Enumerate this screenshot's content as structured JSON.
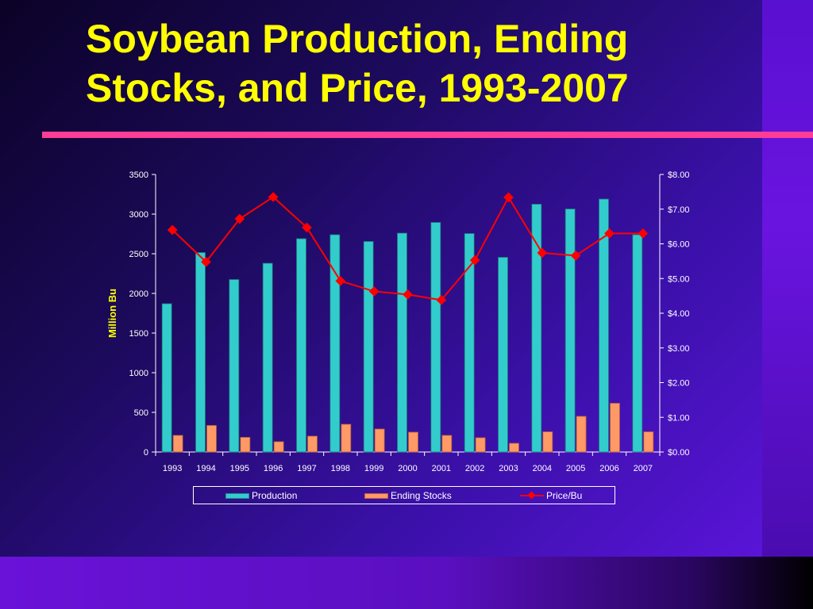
{
  "slide": {
    "title": "Soybean Production, Ending Stocks, and Price, 1993-2007"
  },
  "colors": {
    "title": "#ffff00",
    "rule": "#ff3c96",
    "production": "#33cccc",
    "ending_stocks": "#ff9966",
    "price": "#ff0000"
  },
  "chart_data": {
    "type": "bar",
    "title": "",
    "xlabel": "",
    "ylabel": "Million Bu",
    "y2label": "",
    "categories": [
      "1993",
      "1994",
      "1995",
      "1996",
      "1997",
      "1998",
      "1999",
      "2000",
      "2001",
      "2002",
      "2003",
      "2004",
      "2005",
      "2006",
      "2007"
    ],
    "ylim": [
      0,
      3500
    ],
    "y2lim": [
      0,
      8
    ],
    "yticks": [
      "0",
      "500",
      "1000",
      "1500",
      "2000",
      "2500",
      "3000",
      "3500"
    ],
    "y2ticks": [
      "$0.00",
      "$1.00",
      "$2.00",
      "$3.00",
      "$4.00",
      "$5.00",
      "$6.00",
      "$7.00",
      "$8.00"
    ],
    "grid": false,
    "legend_position": "bottom",
    "series": [
      {
        "name": "Production",
        "type": "bar",
        "axis": "left",
        "values": [
          1870,
          2515,
          2175,
          2380,
          2690,
          2740,
          2655,
          2760,
          2895,
          2755,
          2455,
          3125,
          3065,
          3190,
          2740
        ]
      },
      {
        "name": "Ending Stocks",
        "type": "bar",
        "axis": "left",
        "values": [
          210,
          335,
          185,
          130,
          200,
          350,
          290,
          250,
          210,
          180,
          110,
          255,
          450,
          615,
          255
        ]
      },
      {
        "name": "Price/Bu",
        "type": "line",
        "axis": "right",
        "marker": "diamond",
        "values": [
          6.4,
          5.48,
          6.72,
          7.35,
          6.47,
          4.93,
          4.63,
          4.54,
          4.38,
          5.53,
          7.34,
          5.74,
          5.66,
          6.3,
          6.3
        ]
      }
    ]
  }
}
